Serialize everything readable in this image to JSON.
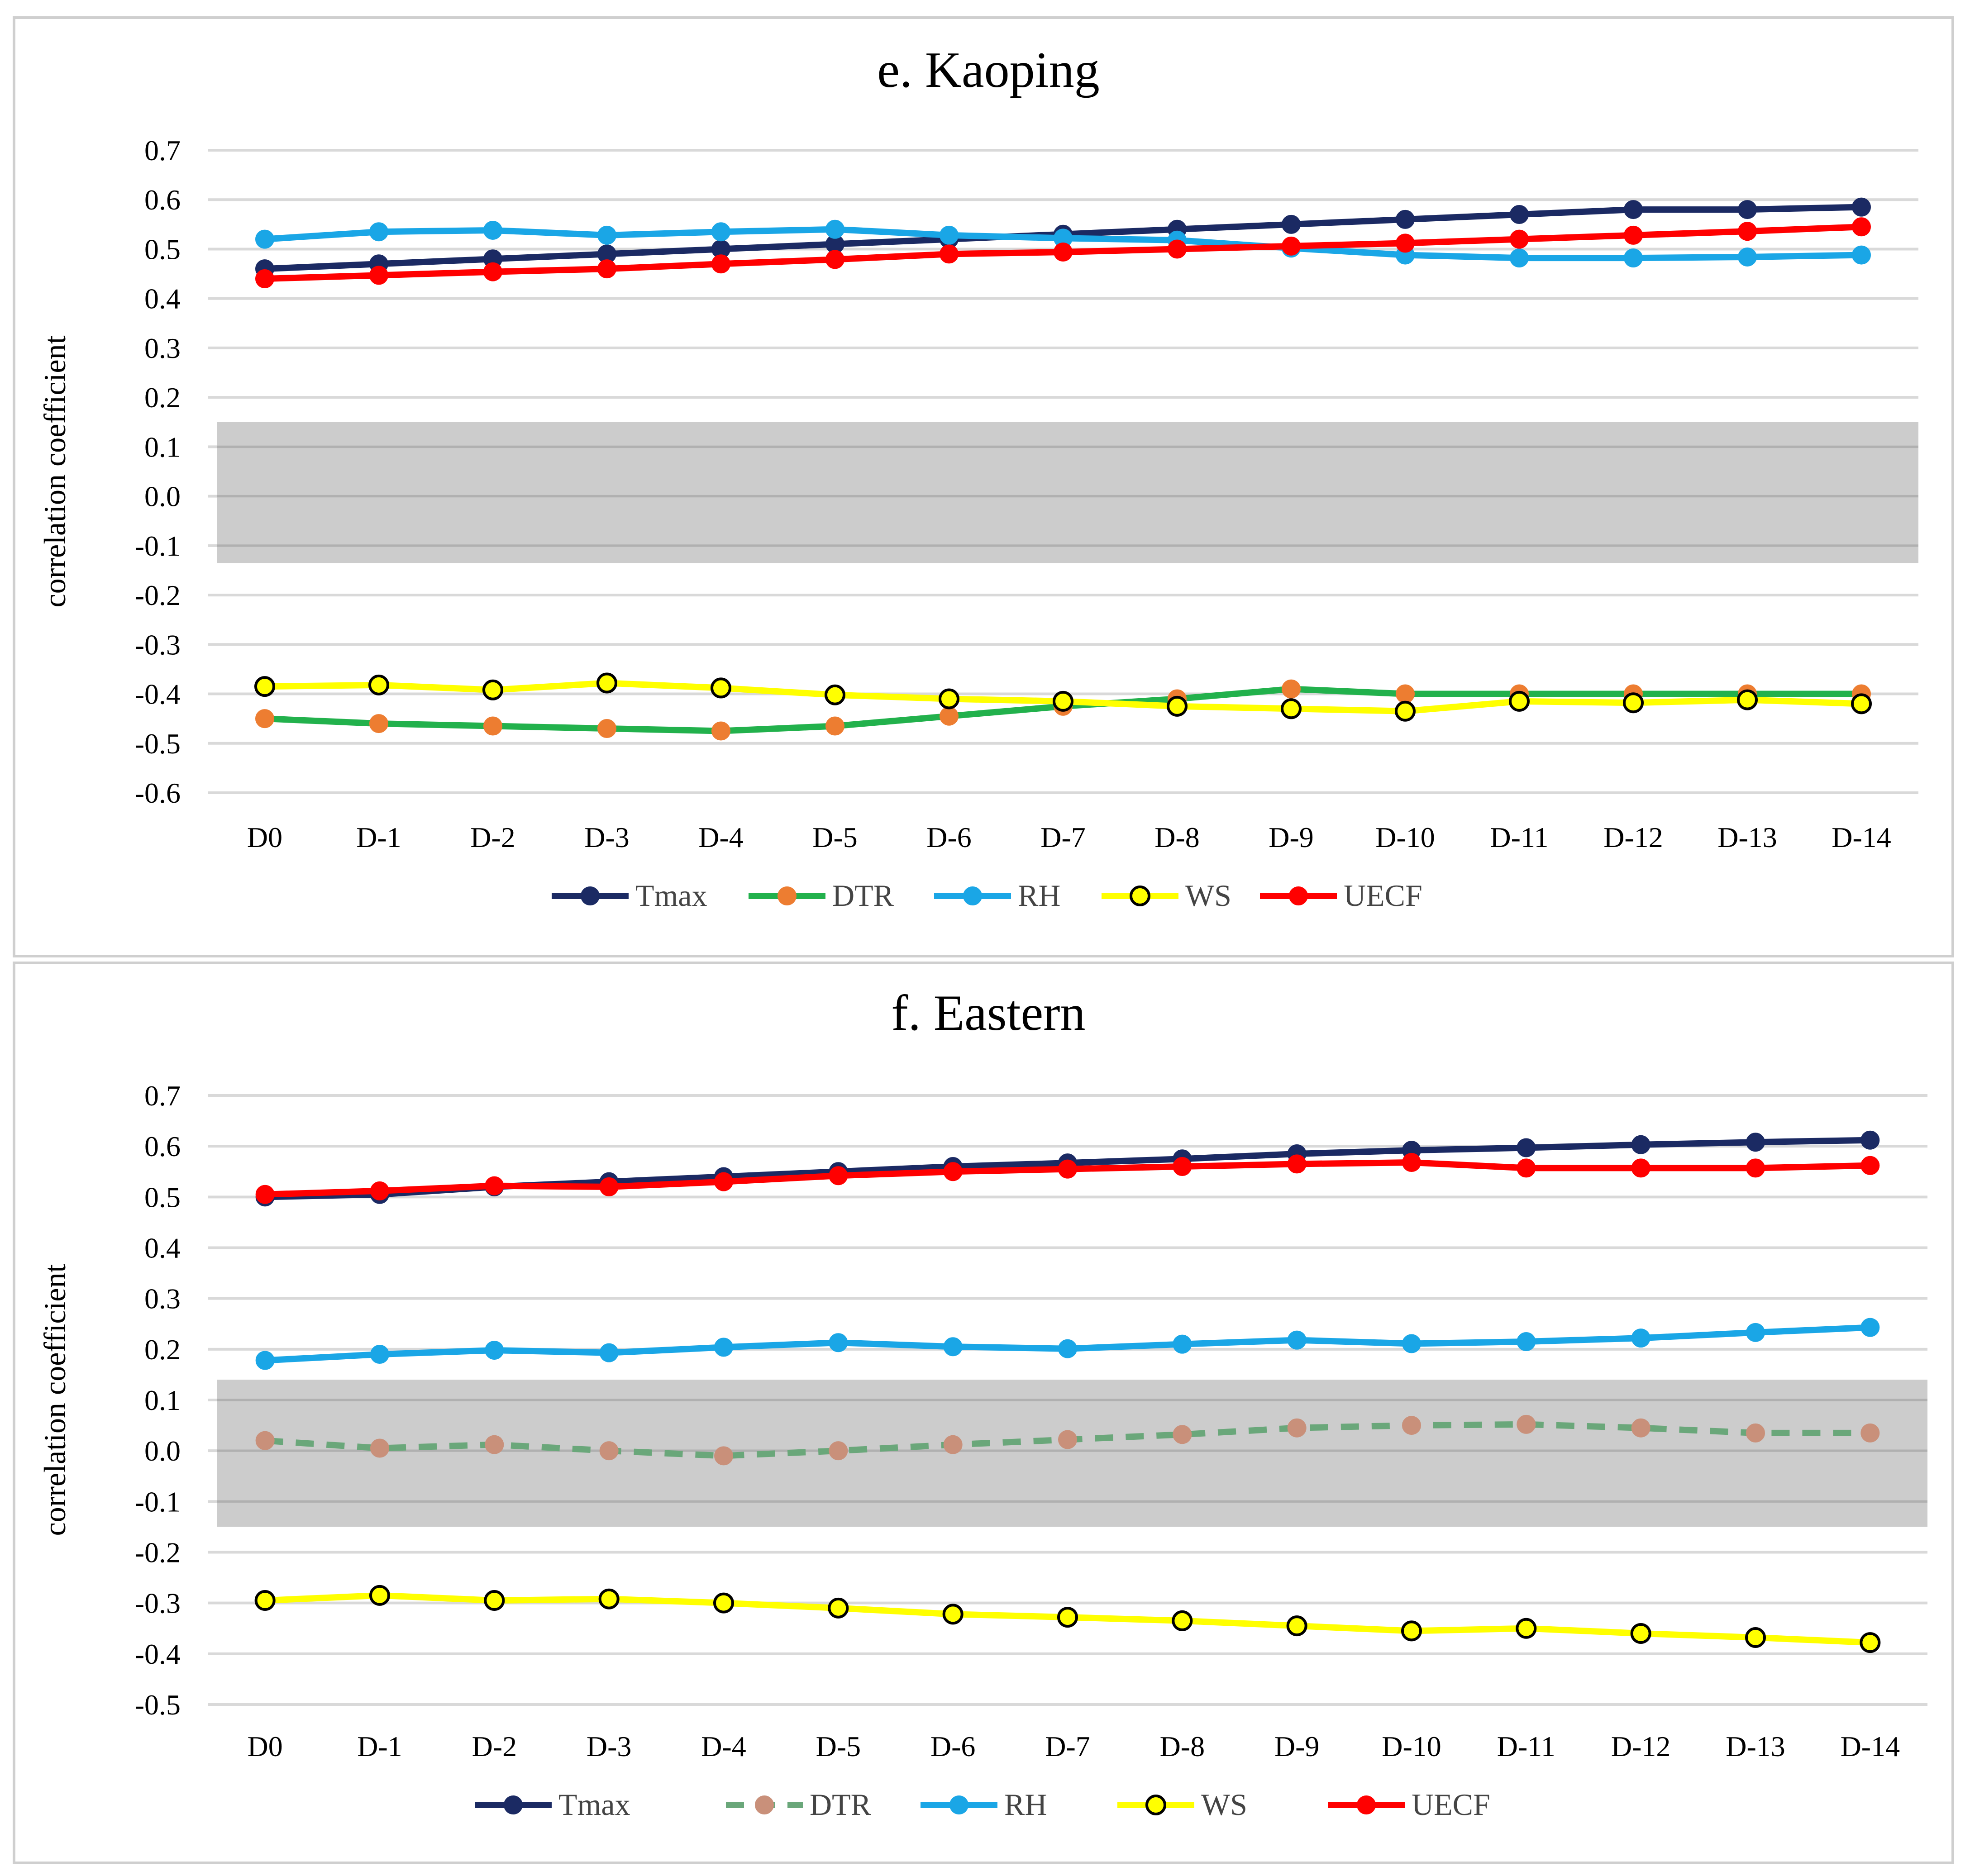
{
  "chart_data": [
    {
      "type": "line",
      "title": "e. Kaoping",
      "ylabel": "correlation coefficient",
      "xlabel": "",
      "categories": [
        "D0",
        "D-1",
        "D-2",
        "D-3",
        "D-4",
        "D-5",
        "D-6",
        "D-7",
        "D-8",
        "D-9",
        "D-10",
        "D-11",
        "D-12",
        "D-13",
        "D-14"
      ],
      "yticks": [
        "0.7",
        "0.6",
        "0.5",
        "0.4",
        "0.3",
        "0.2",
        "0.1",
        "0.0",
        "-0.1",
        "-0.2",
        "-0.3",
        "-0.4",
        "-0.5",
        "-0.6"
      ],
      "ylim": [
        -0.6,
        0.7
      ],
      "grid": true,
      "shaded_band": [
        -0.135,
        0.15
      ],
      "legend_position": "bottom",
      "series": [
        {
          "name": "Tmax",
          "line_color": "#1b2a63",
          "marker_fill": "#1b2a63",
          "marker_stroke": "#1b2a63",
          "dashed": false,
          "values": [
            0.46,
            0.47,
            0.48,
            0.49,
            0.5,
            0.51,
            0.52,
            0.53,
            0.54,
            0.55,
            0.56,
            0.57,
            0.58,
            0.58,
            0.585
          ]
        },
        {
          "name": "DTR",
          "line_color": "#22b14c",
          "marker_fill": "#ed7d31",
          "marker_stroke": "#ed7d31",
          "dashed": false,
          "values": [
            -0.45,
            -0.46,
            -0.465,
            -0.47,
            -0.475,
            -0.465,
            -0.445,
            -0.425,
            -0.41,
            -0.39,
            -0.4,
            -0.4,
            -0.4,
            -0.4,
            -0.4
          ]
        },
        {
          "name": "RH",
          "line_color": "#1aa6e6",
          "marker_fill": "#1aa6e6",
          "marker_stroke": "#1aa6e6",
          "dashed": false,
          "values": [
            0.52,
            0.535,
            0.538,
            0.528,
            0.535,
            0.54,
            0.528,
            0.522,
            0.518,
            0.502,
            0.488,
            0.482,
            0.482,
            0.484,
            0.488
          ]
        },
        {
          "name": "WS",
          "line_color": "#ffff00",
          "marker_fill": "#ffff00",
          "marker_stroke": "#000000",
          "dashed": false,
          "values": [
            -0.385,
            -0.382,
            -0.392,
            -0.378,
            -0.388,
            -0.402,
            -0.41,
            -0.415,
            -0.425,
            -0.43,
            -0.435,
            -0.415,
            -0.418,
            -0.412,
            -0.42
          ]
        },
        {
          "name": "UECF",
          "line_color": "#ff0000",
          "marker_fill": "#ff0000",
          "marker_stroke": "#ff0000",
          "dashed": false,
          "values": [
            0.44,
            0.447,
            0.454,
            0.46,
            0.47,
            0.479,
            0.49,
            0.494,
            0.5,
            0.506,
            0.512,
            0.52,
            0.528,
            0.536,
            0.545
          ]
        }
      ]
    },
    {
      "type": "line",
      "title": "f. Eastern",
      "ylabel": "correlation coefficient",
      "xlabel": "",
      "categories": [
        "D0",
        "D-1",
        "D-2",
        "D-3",
        "D-4",
        "D-5",
        "D-6",
        "D-7",
        "D-8",
        "D-9",
        "D-10",
        "D-11",
        "D-12",
        "D-13",
        "D-14"
      ],
      "yticks": [
        "0.7",
        "0.6",
        "0.5",
        "0.4",
        "0.3",
        "0.2",
        "0.1",
        "0.0",
        "-0.1",
        "-0.2",
        "-0.3",
        "-0.4",
        "-0.5"
      ],
      "ylim": [
        -0.5,
        0.7
      ],
      "grid": true,
      "shaded_band": [
        -0.15,
        0.14
      ],
      "legend_position": "bottom",
      "series": [
        {
          "name": "Tmax",
          "line_color": "#1b2a63",
          "marker_fill": "#1b2a63",
          "marker_stroke": "#1b2a63",
          "dashed": false,
          "values": [
            0.5,
            0.505,
            0.52,
            0.53,
            0.54,
            0.55,
            0.56,
            0.567,
            0.575,
            0.585,
            0.592,
            0.597,
            0.603,
            0.608,
            0.612
          ]
        },
        {
          "name": "DTR",
          "line_color": "#6aa77a",
          "marker_fill": "#c9907a",
          "marker_stroke": "#c9907a",
          "dashed": true,
          "values": [
            0.02,
            0.005,
            0.012,
            0.0,
            -0.01,
            0.0,
            0.012,
            0.022,
            0.032,
            0.045,
            0.05,
            0.052,
            0.045,
            0.035,
            0.035
          ]
        },
        {
          "name": "RH",
          "line_color": "#1aa6e6",
          "marker_fill": "#1aa6e6",
          "marker_stroke": "#1aa6e6",
          "dashed": false,
          "values": [
            0.178,
            0.19,
            0.198,
            0.193,
            0.204,
            0.213,
            0.205,
            0.201,
            0.21,
            0.218,
            0.211,
            0.215,
            0.222,
            0.233,
            0.243
          ]
        },
        {
          "name": "WS",
          "line_color": "#ffff00",
          "marker_fill": "#ffff00",
          "marker_stroke": "#000000",
          "dashed": false,
          "values": [
            -0.295,
            -0.285,
            -0.295,
            -0.292,
            -0.3,
            -0.31,
            -0.322,
            -0.328,
            -0.335,
            -0.345,
            -0.355,
            -0.35,
            -0.36,
            -0.368,
            -0.378
          ]
        },
        {
          "name": "UECF",
          "line_color": "#ff0000",
          "marker_fill": "#ff0000",
          "marker_stroke": "#ff0000",
          "dashed": false,
          "values": [
            0.505,
            0.512,
            0.522,
            0.52,
            0.53,
            0.542,
            0.55,
            0.555,
            0.56,
            0.565,
            0.568,
            0.557,
            0.557,
            0.557,
            0.562
          ]
        }
      ]
    }
  ]
}
